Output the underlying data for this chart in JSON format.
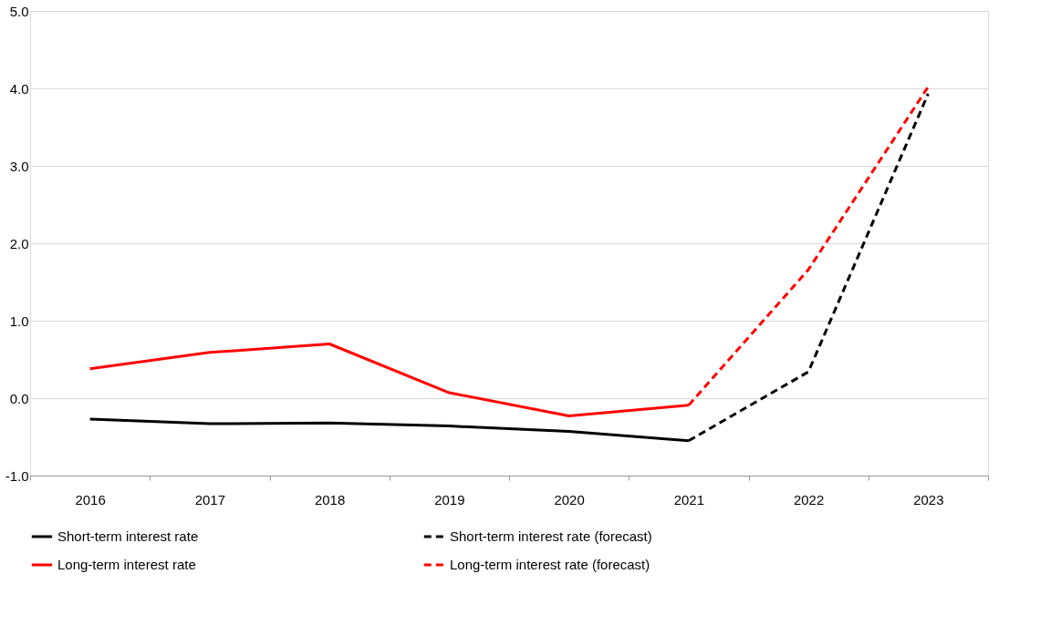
{
  "chart_data": {
    "type": "line",
    "categories": [
      "2016",
      "2017",
      "2018",
      "2019",
      "2020",
      "2021",
      "2022",
      "2023"
    ],
    "series": [
      {
        "name": "Short-term interest rate",
        "color": "#000000",
        "line_style": "solid",
        "values": [
          -0.27,
          -0.33,
          -0.32,
          -0.36,
          -0.43,
          -0.55,
          null,
          null
        ]
      },
      {
        "name": "Short-term interest rate (forecast)",
        "color": "#000000",
        "line_style": "dashed",
        "values": [
          null,
          null,
          null,
          null,
          null,
          -0.55,
          0.34,
          3.93
        ]
      },
      {
        "name": "Long-term interest rate",
        "color": "#ff0000",
        "line_style": "solid",
        "values": [
          0.38,
          0.59,
          0.7,
          0.07,
          -0.23,
          -0.09,
          null,
          null
        ]
      },
      {
        "name": "Long-term interest rate (forecast)",
        "color": "#ff0000",
        "line_style": "dashed",
        "values": [
          null,
          null,
          null,
          null,
          null,
          -0.09,
          1.66,
          4.02
        ]
      }
    ],
    "ylim": [
      -1,
      5
    ],
    "yticks": [
      {
        "value": -1,
        "label": "-1.0"
      },
      {
        "value": 0,
        "label": "0.0"
      },
      {
        "value": 1,
        "label": "1.0"
      },
      {
        "value": 2,
        "label": "2.0"
      },
      {
        "value": 3,
        "label": "3.0"
      },
      {
        "value": 4,
        "label": "4.0"
      },
      {
        "value": 5,
        "label": "5.0"
      }
    ],
    "grid": "y",
    "legend": "bottom",
    "marker": "none"
  }
}
